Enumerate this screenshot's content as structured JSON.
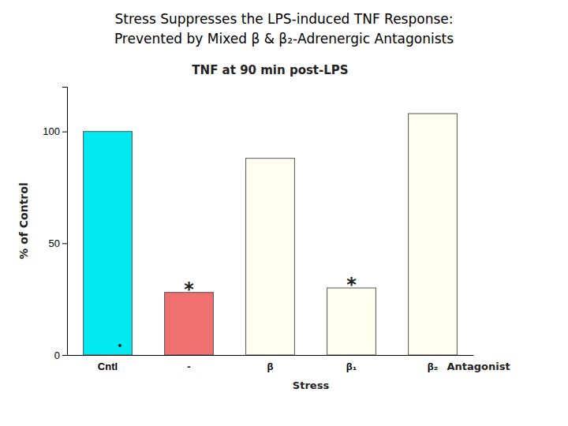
{
  "chart_data": {
    "type": "bar",
    "title": [
      "Stress Suppresses the LPS-induced TNF Response:",
      "Prevented by Mixed β & β₂-Adrenergic Antagonists"
    ],
    "subtitle": "TNF at 90 min post-LPS",
    "y_label": "% of Control",
    "categories": [
      "Cntl",
      "-",
      "β",
      "β₁",
      "β₂"
    ],
    "values": [
      100,
      28,
      88,
      30,
      108
    ],
    "colors": [
      "#00e8f0",
      "#f07070",
      "#fffff0",
      "#fffff0",
      "#fffff0"
    ],
    "ylim": [
      0,
      120
    ],
    "yticks": [
      0,
      50,
      100
    ],
    "grid": false,
    "annotations": [
      {
        "text": "*",
        "category": "-"
      },
      {
        "text": "*",
        "category": "β₁"
      },
      {
        "text": "•",
        "category": "Cntl"
      },
      {
        "text": "Antagonist",
        "category": "β₂"
      },
      {
        "text": "Stress",
        "category": [
          "-",
          "β",
          "β₁",
          "β₂"
        ]
      }
    ]
  }
}
